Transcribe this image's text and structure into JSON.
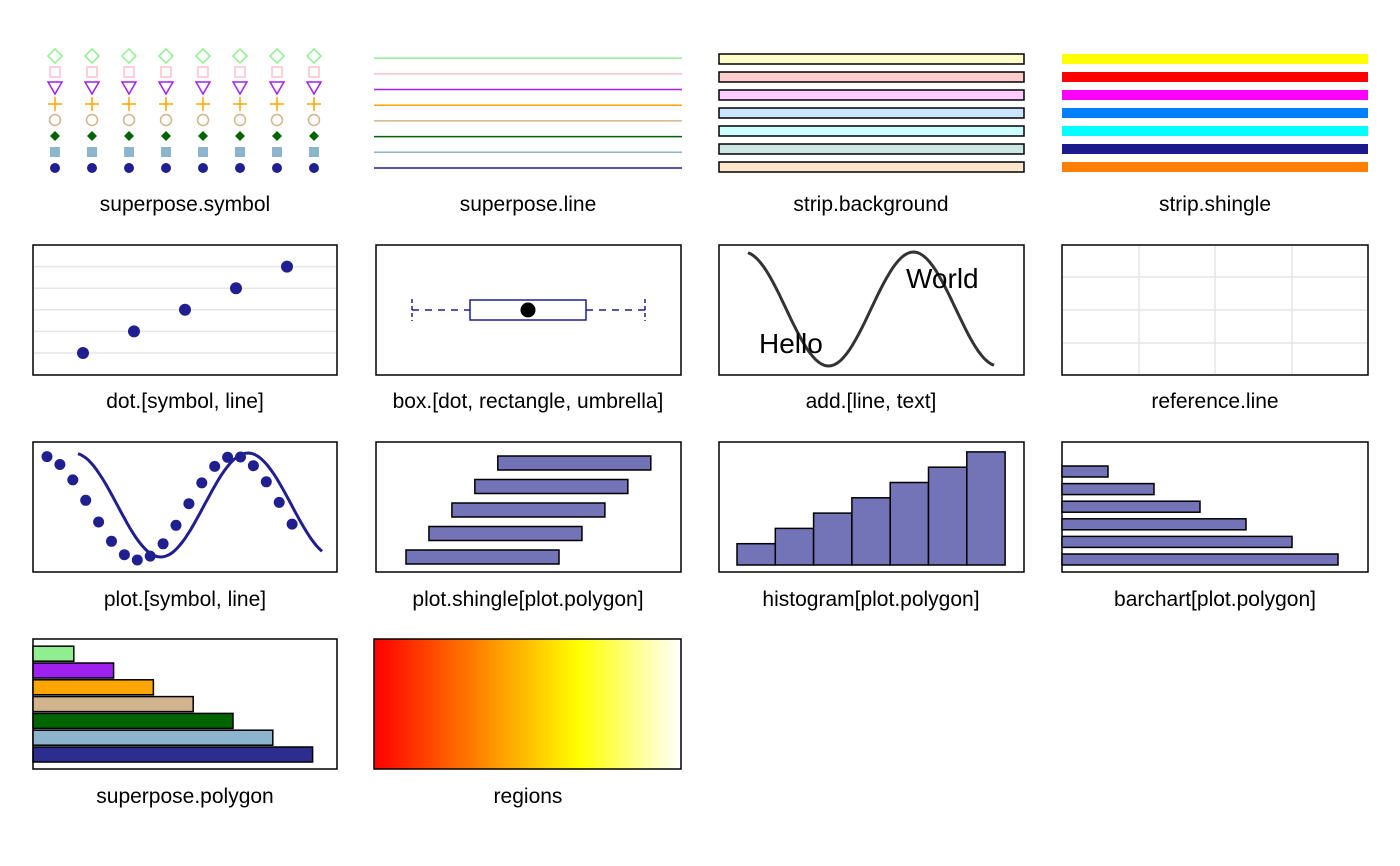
{
  "labels": {
    "superpose_symbol": "superpose.symbol",
    "superpose_line": "superpose.line",
    "strip_background": "strip.background",
    "strip_shingle": "strip.shingle",
    "dot": "dot.[symbol, line]",
    "box": "box.[dot, rectangle, umbrella]",
    "add": "add.[line, text]",
    "reference": "reference.line",
    "plot": "plot.[symbol, line]",
    "plot_shingle": "plot.shingle[plot.polygon]",
    "histogram": "histogram[plot.polygon]",
    "barchart": "barchart[plot.polygon]",
    "superpose_polygon": "superpose.polygon",
    "regions": "regions"
  },
  "add_text": {
    "hello": "Hello",
    "world": "World"
  },
  "colors": {
    "superpose_symbol": [
      "#1F1F8F",
      "#8CB4CC",
      "#006400",
      "#D2B48C",
      "#FFA500",
      "#A020F0",
      "#FFC0CB",
      "#90EE90"
    ],
    "superpose_line": [
      "#1F1F8F",
      "#8CB4CC",
      "#006400",
      "#D2B48C",
      "#FFA500",
      "#A020F0",
      "#FFC0CB",
      "#90EE90"
    ],
    "strip_background": [
      "#FFE5CC",
      "#CCE5E5",
      "#CCFFFF",
      "#CCE5FF",
      "#FFCCFF",
      "#FFCCCC",
      "#FFFFCC"
    ],
    "strip_shingle": [
      "#FF7F00",
      "#1A1A8C",
      "#00FFFF",
      "#0080FF",
      "#FF00FF",
      "#FF0000",
      "#FFFF00"
    ],
    "superpose_polygon": [
      "#2D2D8F",
      "#8CB4CC",
      "#006400",
      "#D2B48C",
      "#FFA500",
      "#A020F0",
      "#90EE90"
    ],
    "plot_symbol": "#1F1F8F",
    "plot_polygon_fill": "#7373B8",
    "reference_line": "#E6E6E6",
    "add_line": "#333333",
    "regions_stops": [
      "#FF0000",
      "#FF8000",
      "#FFFF00",
      "#FFFFFF"
    ]
  },
  "symbol_kinds": [
    "filled-circle",
    "filled-square",
    "filled-diamond",
    "open-circle",
    "plus",
    "open-triangle-down",
    "open-square",
    "open-diamond"
  ],
  "chart_data": [
    {
      "type": "scatter",
      "panel": "dot",
      "x": [
        1,
        2,
        3,
        4,
        5
      ],
      "y": [
        1,
        2,
        3,
        4,
        5
      ]
    },
    {
      "type": "bar",
      "panel": "histogram",
      "values": [
        1,
        2,
        3,
        4,
        5,
        6,
        7
      ]
    },
    {
      "type": "bar",
      "panel": "barchart",
      "orientation": "horizontal",
      "values": [
        6,
        5,
        4,
        3,
        2,
        1
      ]
    },
    {
      "type": "bar",
      "panel": "superpose_polygon",
      "orientation": "horizontal",
      "values": [
        7,
        6,
        5,
        4,
        3,
        2,
        1
      ]
    },
    {
      "type": "bar",
      "panel": "plot_shingle",
      "orientation": "horizontal",
      "intervals": [
        [
          0,
          5
        ],
        [
          0.75,
          5.75
        ],
        [
          1.5,
          6.5
        ],
        [
          2.25,
          7.25
        ],
        [
          3,
          8
        ]
      ]
    }
  ]
}
